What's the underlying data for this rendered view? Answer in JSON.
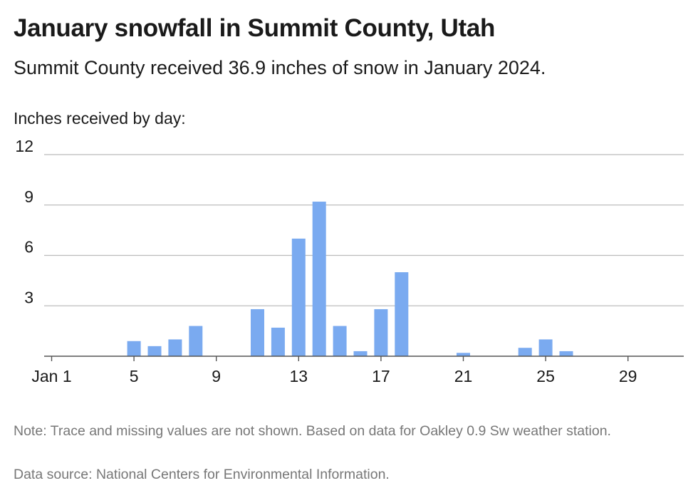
{
  "title": "January snowfall in Summit County, Utah",
  "subtitle": "Summit County received 36.9 inches of snow in January 2024.",
  "y_axis_label": "Inches received by day:",
  "note": "Note: Trace and missing values are not shown. Based on data for Oakley 0.9 Sw weather station.",
  "source": "Data source: National Centers for Environmental Information.",
  "colors": {
    "bar": "#7aaaf0",
    "grid": "#bbbbbb",
    "axis": "#555555"
  },
  "chart_data": {
    "type": "bar",
    "title": "January snowfall in Summit County, Utah",
    "ylabel": "Inches received by day:",
    "xlabel": "",
    "ylim": [
      0,
      12
    ],
    "yticks": [
      3,
      6,
      9,
      12
    ],
    "grid": true,
    "x_tick_labels": [
      {
        "day": 1,
        "label": "Jan 1"
      },
      {
        "day": 5,
        "label": "5"
      },
      {
        "day": 9,
        "label": "9"
      },
      {
        "day": 13,
        "label": "13"
      },
      {
        "day": 17,
        "label": "17"
      },
      {
        "day": 21,
        "label": "21"
      },
      {
        "day": 25,
        "label": "25"
      },
      {
        "day": 29,
        "label": "29"
      }
    ],
    "bars": [
      {
        "day": 5,
        "value": 0.9
      },
      {
        "day": 6,
        "value": 0.6
      },
      {
        "day": 7,
        "value": 1.0
      },
      {
        "day": 8,
        "value": 1.8
      },
      {
        "day": 11,
        "value": 2.8
      },
      {
        "day": 12,
        "value": 1.7
      },
      {
        "day": 13,
        "value": 7.0
      },
      {
        "day": 14,
        "value": 9.2
      },
      {
        "day": 15,
        "value": 1.8
      },
      {
        "day": 16,
        "value": 0.3
      },
      {
        "day": 17,
        "value": 2.8
      },
      {
        "day": 18,
        "value": 5.0
      },
      {
        "day": 21,
        "value": 0.2
      },
      {
        "day": 24,
        "value": 0.5
      },
      {
        "day": 25,
        "value": 1.0
      },
      {
        "day": 26,
        "value": 0.3
      }
    ]
  }
}
